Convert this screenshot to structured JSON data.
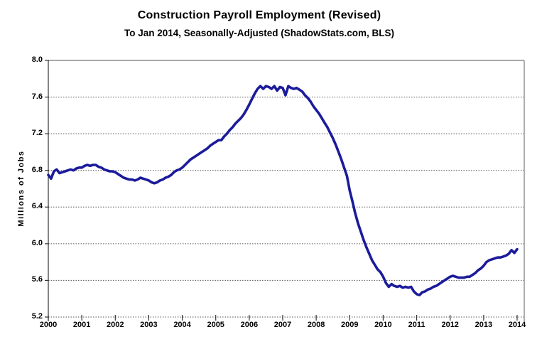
{
  "header": {
    "title": "Construction Payroll Employment  (Revised)",
    "subtitle": "To Jan 2014, Seasonally-Adjusted (ShadowStats.com, BLS)"
  },
  "colors": {
    "line": "#1b1b9b",
    "frame": "#8c8c8c",
    "axis": "#333333",
    "grid": "#555555",
    "text": "#000000",
    "background": "#ffffff"
  },
  "chart_data": {
    "type": "line",
    "title": "Construction Payroll Employment  (Revised)",
    "subtitle": "To Jan 2014, Seasonally-Adjusted (ShadowStats.com, BLS)",
    "xlabel": "",
    "ylabel": "Millions  of  Jobs",
    "ylim": [
      5.2,
      8.0
    ],
    "xlim": [
      2000,
      2014.2
    ],
    "yticks": [
      5.2,
      5.6,
      6.0,
      6.4,
      6.8,
      7.2,
      7.6,
      8.0
    ],
    "yticklabels": [
      "5.2",
      "5.6",
      "6.0",
      "6.4",
      "6.8",
      "7.2",
      "7.6",
      "8.0"
    ],
    "xticks": [
      2000,
      2001,
      2002,
      2003,
      2004,
      2005,
      2006,
      2007,
      2008,
      2009,
      2010,
      2011,
      2012,
      2013,
      2014
    ],
    "xticklabels": [
      "2000",
      "2001",
      "2002",
      "2003",
      "2004",
      "2005",
      "2006",
      "2007",
      "2008",
      "2009",
      "2010",
      "2011",
      "2012",
      "2013",
      "2014"
    ],
    "grid": "horizontal-dotted",
    "legend": "none",
    "series": [
      {
        "name": "Construction payroll employment (millions of jobs, seasonally adjusted)",
        "frequency": "monthly",
        "start": "2000-01",
        "end": "2014-01",
        "values": [
          6.75,
          6.71,
          6.79,
          6.81,
          6.77,
          6.78,
          6.79,
          6.8,
          6.81,
          6.8,
          6.82,
          6.83,
          6.83,
          6.85,
          6.86,
          6.85,
          6.86,
          6.86,
          6.84,
          6.83,
          6.81,
          6.8,
          6.79,
          6.79,
          6.78,
          6.76,
          6.74,
          6.72,
          6.71,
          6.7,
          6.7,
          6.69,
          6.7,
          6.72,
          6.71,
          6.7,
          6.69,
          6.67,
          6.66,
          6.67,
          6.69,
          6.7,
          6.72,
          6.73,
          6.75,
          6.78,
          6.8,
          6.81,
          6.83,
          6.86,
          6.89,
          6.92,
          6.94,
          6.96,
          6.98,
          7.0,
          7.02,
          7.04,
          7.07,
          7.09,
          7.11,
          7.13,
          7.13,
          7.17,
          7.2,
          7.24,
          7.27,
          7.31,
          7.34,
          7.37,
          7.41,
          7.46,
          7.52,
          7.58,
          7.64,
          7.69,
          7.72,
          7.69,
          7.72,
          7.71,
          7.69,
          7.72,
          7.67,
          7.71,
          7.7,
          7.62,
          7.72,
          7.7,
          7.69,
          7.7,
          7.68,
          7.66,
          7.62,
          7.59,
          7.55,
          7.5,
          7.46,
          7.42,
          7.37,
          7.32,
          7.27,
          7.21,
          7.15,
          7.08,
          7.0,
          6.92,
          6.83,
          6.74,
          6.58,
          6.46,
          6.33,
          6.22,
          6.13,
          6.04,
          5.96,
          5.89,
          5.82,
          5.77,
          5.72,
          5.69,
          5.64,
          5.57,
          5.53,
          5.56,
          5.54,
          5.53,
          5.54,
          5.52,
          5.53,
          5.52,
          5.53,
          5.48,
          5.45,
          5.44,
          5.47,
          5.48,
          5.5,
          5.51,
          5.53,
          5.54,
          5.56,
          5.58,
          5.6,
          5.62,
          5.64,
          5.65,
          5.64,
          5.63,
          5.63,
          5.63,
          5.64,
          5.64,
          5.66,
          5.68,
          5.71,
          5.73,
          5.76,
          5.8,
          5.82,
          5.83,
          5.84,
          5.85,
          5.85,
          5.86,
          5.87,
          5.89,
          5.93,
          5.9,
          5.94
        ]
      }
    ]
  }
}
